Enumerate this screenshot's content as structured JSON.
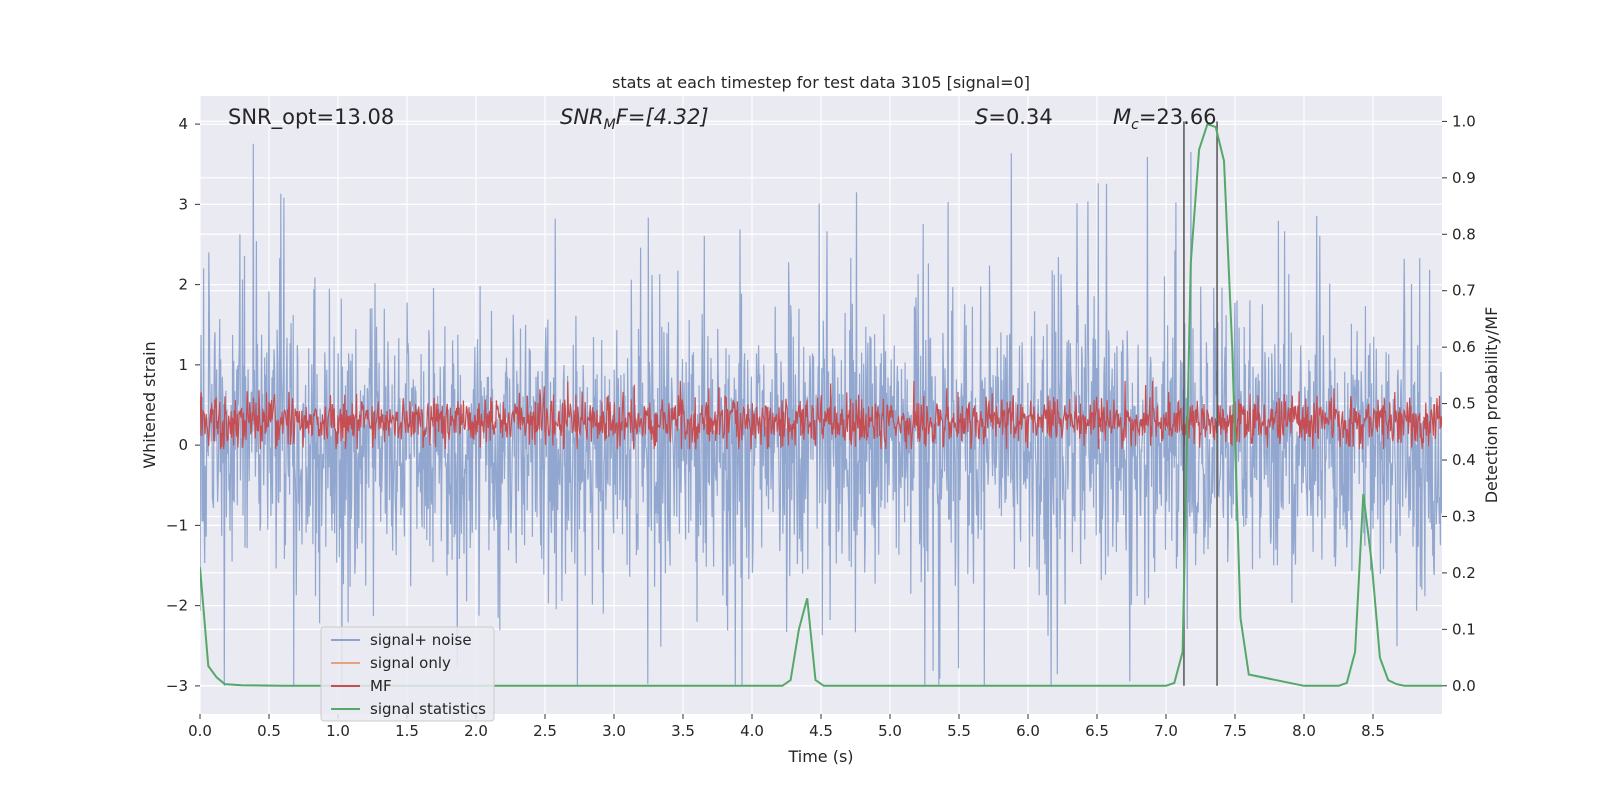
{
  "chart_data": {
    "type": "line",
    "title": "stats at each timestep for test data 3105 [signal=0]",
    "xlabel": "Time (s)",
    "ylabel": "Whitened strain",
    "ylabel_right": "Detection probability/MF",
    "xlim": [
      0,
      9.0
    ],
    "ylim": [
      -3.35,
      4.35
    ],
    "ylim_right": [
      -0.05,
      1.045
    ],
    "x_ticks": [
      "0.0",
      "0.5",
      "1.0",
      "1.5",
      "2.0",
      "2.5",
      "3.0",
      "3.5",
      "4.0",
      "4.5",
      "5.0",
      "5.5",
      "6.0",
      "6.5",
      "7.0",
      "7.5",
      "8.0",
      "8.5"
    ],
    "x_tick_values": [
      0.0,
      0.5,
      1.0,
      1.5,
      2.0,
      2.5,
      3.0,
      3.5,
      4.0,
      4.5,
      5.0,
      5.5,
      6.0,
      6.5,
      7.0,
      7.5,
      8.0,
      8.5
    ],
    "y_ticks": [
      "4",
      "3",
      "2",
      "1",
      "0",
      "−1",
      "−2",
      "−3"
    ],
    "y_tick_values": [
      4,
      3,
      2,
      1,
      0,
      -1,
      -2,
      -3
    ],
    "y_ticks_right": [
      "1.0",
      "0.9",
      "0.8",
      "0.7",
      "0.6",
      "0.5",
      "0.4",
      "0.3",
      "0.2",
      "0.1",
      "0.0"
    ],
    "y_tick_values_right": [
      1.0,
      0.9,
      0.8,
      0.7,
      0.6,
      0.5,
      0.4,
      0.3,
      0.2,
      0.1,
      0.0
    ],
    "grid": true,
    "annotations": {
      "snr_opt": "SNR_opt=13.08",
      "snr_mf_base": "SNR",
      "snr_mf_sub": "M",
      "snr_mf_rest": "F=[4.32]",
      "s_label": "S",
      "s_value": "=0.34",
      "mc_base": "M",
      "mc_sub": "c",
      "mc_value": "=23.66"
    },
    "vertical_lines_x": [
      7.13,
      7.37
    ],
    "legend": {
      "placement": "lower-left",
      "entries": [
        "signal+ noise",
        "signal only",
        "MF",
        "signal statistics"
      ]
    },
    "colors": {
      "signal_noise": "#8da3cc",
      "signal_only": "#e89f80",
      "mf": "#c44e52",
      "signal_statistics": "#55a868",
      "background": "#eaeaf2",
      "vline": "#555555"
    },
    "series": [
      {
        "name": "signal statistics",
        "axis": "right",
        "x": [
          0.0,
          0.06,
          0.12,
          0.18,
          0.3,
          0.6,
          1.0,
          2.0,
          3.0,
          4.0,
          4.22,
          4.28,
          4.34,
          4.4,
          4.46,
          4.52,
          4.6,
          5.0,
          6.0,
          7.0,
          7.06,
          7.12,
          7.18,
          7.24,
          7.3,
          7.36,
          7.42,
          7.48,
          7.54,
          7.6,
          8.0,
          8.25,
          8.31,
          8.37,
          8.43,
          8.49,
          8.55,
          8.61,
          8.67,
          8.73,
          8.8,
          9.0
        ],
        "y": [
          0.21,
          0.035,
          0.015,
          0.003,
          0.001,
          0.0,
          0.0,
          0.0,
          0.0,
          0.0,
          0.0,
          0.01,
          0.1,
          0.155,
          0.01,
          0.0,
          0.0,
          0.0,
          0.0,
          0.0,
          0.005,
          0.06,
          0.75,
          0.95,
          0.995,
          0.99,
          0.93,
          0.6,
          0.12,
          0.02,
          0.0,
          0.0,
          0.005,
          0.06,
          0.34,
          0.22,
          0.05,
          0.01,
          0.003,
          0.0,
          0.0,
          0.0
        ]
      },
      {
        "name": "signal+ noise",
        "axis": "left",
        "description_values": "noise band roughly -2.5 to 2.5 with spikes up to 4.0"
      },
      {
        "name": "MF",
        "axis": "left",
        "description_values": "band roughly 0.0 to 0.8"
      }
    ]
  }
}
